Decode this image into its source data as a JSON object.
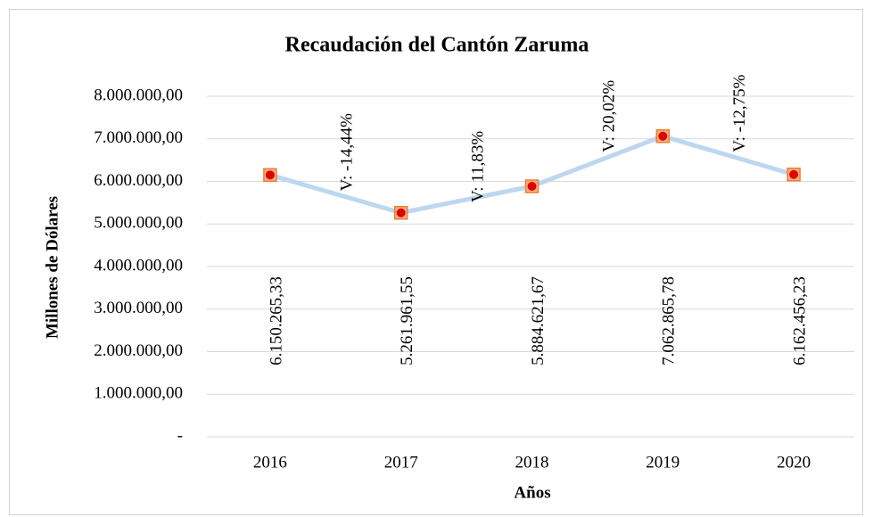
{
  "chart_data": {
    "type": "line",
    "title": "Recaudación del Cantón Zaruma",
    "x_label": "Años",
    "y_label": "Millones de Dólares",
    "categories": [
      "2016",
      "2017",
      "2018",
      "2019",
      "2020"
    ],
    "values": [
      6150265.33,
      5261961.55,
      5884621.67,
      7062865.78,
      6162456.23
    ],
    "value_labels": [
      "6.150.265,33",
      "5.261.961,55",
      "5.884.621,67",
      "7.062.865,78",
      "6.162.456,23"
    ],
    "annotations": [
      "V: -14,44%",
      "V: 11,83%",
      "V: 20,02%",
      "V: -12,75%"
    ],
    "color": "#bdd7ee",
    "marker_color": "#e00000",
    "marker_edge_color": "#ed7d31",
    "ylim": [
      0,
      8000000
    ],
    "yticks": [
      {
        "value": 0,
        "label": "-"
      },
      {
        "value": 1000000,
        "label": "1.000.000,00"
      },
      {
        "value": 2000000,
        "label": "2.000.000,00"
      },
      {
        "value": 3000000,
        "label": "3.000.000,00"
      },
      {
        "value": 4000000,
        "label": "4.000.000,00"
      },
      {
        "value": 5000000,
        "label": "5.000.000,00"
      },
      {
        "value": 6000000,
        "label": "6.000.000,00"
      },
      {
        "value": 7000000,
        "label": "7.000.000,00"
      },
      {
        "value": 8000000,
        "label": "8.000.000,00"
      }
    ],
    "grid": true
  }
}
